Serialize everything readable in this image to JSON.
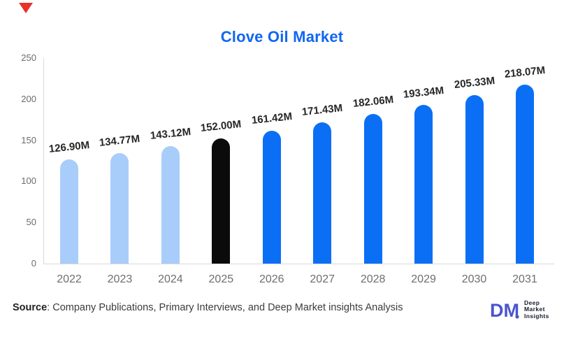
{
  "chart_data": {
    "type": "bar",
    "title": "Clove Oil Market",
    "categories": [
      "2022",
      "2023",
      "2024",
      "2025",
      "2026",
      "2027",
      "2028",
      "2029",
      "2030",
      "2031"
    ],
    "values": [
      126.9,
      134.77,
      143.12,
      152.0,
      161.42,
      171.43,
      182.06,
      193.34,
      205.33,
      218.07
    ],
    "value_labels": [
      "126.90M",
      "134.77M",
      "143.12M",
      "152.00M",
      "161.42M",
      "171.43M",
      "182.06M",
      "193.34M",
      "205.33M",
      "218.07M"
    ],
    "bar_colors": [
      "#a8cdfa",
      "#a8cdfa",
      "#a8cdfa",
      "#0b0b0b",
      "#0b6ff5",
      "#0b6ff5",
      "#0b6ff5",
      "#0b6ff5",
      "#0b6ff5",
      "#0b6ff5"
    ],
    "xlabel": "",
    "ylabel": "",
    "ylim": [
      0,
      250
    ],
    "yticks": [
      0,
      50,
      100,
      150,
      200,
      250
    ],
    "grid": "off",
    "legend": "none",
    "unit": "M"
  },
  "colors": {
    "title_blue": "#1166f1",
    "bright_blue": "#0b6ff5",
    "light_blue": "#a8cdfa",
    "black_bar": "#0b0b0b",
    "axis_gray": "#d9d9d9",
    "flag_red": "#e8312a",
    "logo_blue": "#4a55d0",
    "logo_dark": "#17182d"
  },
  "footer": {
    "source_prefix": "Source",
    "source_rest": ": Company Publications, Primary Interviews, and Deep Market insights Analysis"
  },
  "logo": {
    "monogram": "DM",
    "lines": [
      "Deep",
      "Market",
      "Insights"
    ]
  }
}
